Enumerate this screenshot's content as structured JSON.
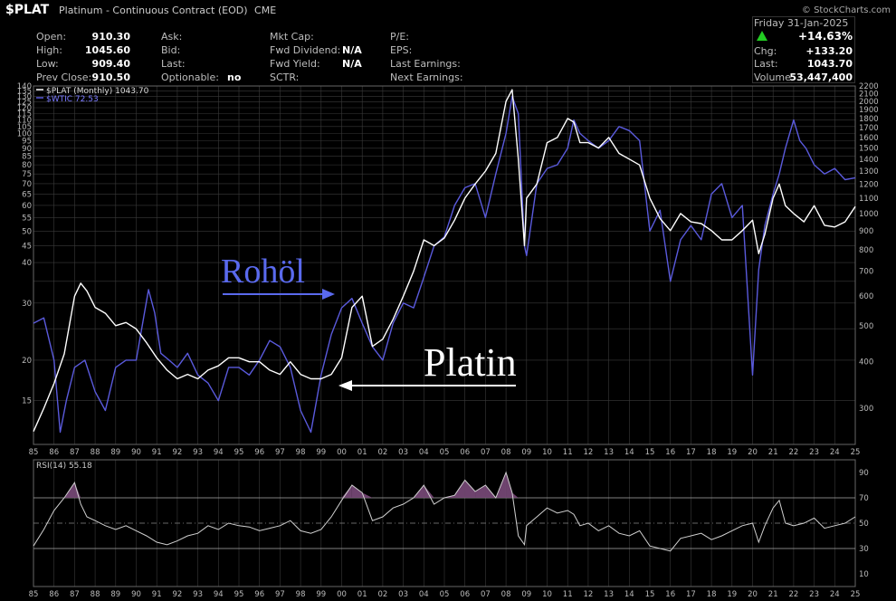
{
  "header": {
    "symbol": "$PLAT",
    "name": "Platinum - Continuous Contract (EOD)",
    "exchange": "CME",
    "watermark": "© StockCharts.com"
  },
  "quote": {
    "open_label": "Open:",
    "open": "910.30",
    "high_label": "High:",
    "high": "1045.60",
    "low_label": "Low:",
    "low": "909.40",
    "prev_close_label": "Prev Close:",
    "prev_close": "910.50",
    "ask_label": "Ask:",
    "bid_label": "Bid:",
    "last_label": "Last:",
    "optionable_label": "Optionable:",
    "optionable": "no",
    "mktcap_label": "Mkt Cap:",
    "fwd_div_label": "Fwd Dividend:",
    "fwd_div": "N/A",
    "fwd_yield_label": "Fwd Yield:",
    "fwd_yield": "N/A",
    "sctr_label": "SCTR:",
    "pe_label": "P/E:",
    "eps_label": "EPS:",
    "last_earn_label": "Last Earnings:",
    "next_earn_label": "Next Earnings:",
    "date": "Friday  31-Jan-2025",
    "change_pct": "+14.63%",
    "chg_label": "Chg:",
    "chg": "+133.20",
    "last2_label": "Last:",
    "last2": "1043.70",
    "volume_label": "Volume:",
    "volume": "53,447,400"
  },
  "annotations": {
    "oil": "Rohöl",
    "platinum": "Platin"
  },
  "colors": {
    "platinum": "#ffffff",
    "oil": "#5a5adc",
    "up": "#22cc22",
    "rsi_fill": "#7a4a7a"
  },
  "chart_data": {
    "type": "line",
    "legend": [
      "$PLAT (Monthly) 1043.70",
      "$WTIC 72.53"
    ],
    "x_ticks": [
      "85",
      "86",
      "87",
      "88",
      "89",
      "90",
      "91",
      "92",
      "93",
      "94",
      "95",
      "96",
      "97",
      "98",
      "99",
      "00",
      "01",
      "02",
      "03",
      "04",
      "05",
      "06",
      "07",
      "08",
      "09",
      "10",
      "11",
      "12",
      "13",
      "14",
      "15",
      "16",
      "17",
      "18",
      "19",
      "20",
      "21",
      "22",
      "23",
      "24",
      "25"
    ],
    "left_axis_ticks": [
      15,
      20,
      25,
      30,
      35,
      40,
      45,
      50,
      55,
      60,
      65,
      70,
      75,
      80,
      85,
      90,
      95,
      100,
      105,
      110,
      115,
      120,
      125,
      130,
      135,
      140
    ],
    "left_axis_labeled": [
      15,
      20,
      30,
      40,
      45,
      50,
      55,
      60,
      65,
      70,
      75,
      80,
      85,
      90,
      95,
      100,
      105,
      110,
      115,
      120,
      125,
      130,
      135,
      140
    ],
    "right_axis_ticks": [
      300,
      400,
      500,
      600,
      700,
      800,
      900,
      1000,
      1100,
      1200,
      1300,
      1400,
      1500,
      1600,
      1700,
      1800,
      1900,
      2000,
      2100,
      2200
    ],
    "ylim_left": [
      11,
      140
    ],
    "ylim_right": [
      240,
      2200
    ],
    "series": [
      {
        "name": "$PLAT (Monthly)",
        "axis": "right",
        "x": [
          1985,
          1985.5,
          1986,
          1986.5,
          1987,
          1987.3,
          1987.6,
          1988,
          1988.5,
          1989,
          1989.5,
          1990,
          1990.5,
          1991,
          1991.5,
          1992,
          1992.5,
          1993,
          1993.5,
          1994,
          1994.5,
          1995,
          1995.5,
          1996,
          1996.5,
          1997,
          1997.5,
          1998,
          1998.5,
          1999,
          1999.5,
          2000,
          2000.5,
          2001,
          2001.5,
          2002,
          2002.5,
          2003,
          2003.5,
          2004,
          2004.5,
          2005,
          2005.5,
          2006,
          2006.5,
          2007,
          2007.5,
          2008,
          2008.3,
          2008.6,
          2008.9,
          2009,
          2009.5,
          2010,
          2010.5,
          2011,
          2011.3,
          2011.6,
          2012,
          2012.5,
          2013,
          2013.5,
          2014,
          2014.5,
          2015,
          2015.5,
          2016,
          2016.5,
          2017,
          2017.5,
          2018,
          2018.5,
          2019,
          2019.5,
          2020,
          2020.3,
          2020.6,
          2021,
          2021.3,
          2021.6,
          2022,
          2022.5,
          2023,
          2023.5,
          2024,
          2024.5,
          2025
        ],
        "values": [
          260,
          300,
          350,
          420,
          600,
          650,
          620,
          560,
          540,
          500,
          510,
          490,
          450,
          410,
          380,
          360,
          370,
          360,
          380,
          390,
          410,
          410,
          400,
          400,
          380,
          370,
          400,
          370,
          360,
          360,
          370,
          410,
          560,
          600,
          440,
          460,
          520,
          600,
          700,
          850,
          820,
          860,
          960,
          1100,
          1200,
          1300,
          1450,
          2000,
          2150,
          1400,
          820,
          1100,
          1200,
          1550,
          1600,
          1800,
          1760,
          1550,
          1550,
          1500,
          1600,
          1450,
          1400,
          1350,
          1100,
          970,
          900,
          1000,
          950,
          940,
          900,
          850,
          850,
          900,
          960,
          780,
          880,
          1100,
          1200,
          1050,
          1000,
          950,
          1050,
          930,
          920,
          950,
          1044
        ]
      },
      {
        "name": "$WTIC",
        "axis": "left",
        "x": [
          1985,
          1985.5,
          1986,
          1986.3,
          1986.6,
          1987,
          1987.5,
          1988,
          1988.5,
          1989,
          1989.5,
          1990,
          1990.6,
          1990.9,
          1991.2,
          1991.6,
          1992,
          1992.5,
          1993,
          1993.5,
          1994,
          1994.5,
          1995,
          1995.5,
          1996,
          1996.5,
          1997,
          1997.5,
          1998,
          1998.5,
          1999,
          1999.5,
          2000,
          2000.5,
          2001,
          2001.5,
          2002,
          2002.5,
          2003,
          2003.5,
          2004,
          2004.5,
          2005,
          2005.5,
          2006,
          2006.5,
          2007,
          2007.5,
          2008,
          2008.3,
          2008.6,
          2008.9,
          2009,
          2009.5,
          2010,
          2010.5,
          2011,
          2011.3,
          2011.6,
          2012,
          2012.5,
          2013,
          2013.5,
          2014,
          2014.5,
          2015,
          2015.5,
          2016,
          2016.5,
          2017,
          2017.5,
          2018,
          2018.5,
          2019,
          2019.5,
          2020,
          2020.3,
          2020.6,
          2021,
          2021.3,
          2021.6,
          2022,
          2022.3,
          2022.6,
          2023,
          2023.5,
          2024,
          2024.5,
          2025
        ],
        "values": [
          26,
          27,
          20,
          12,
          15,
          19,
          20,
          16,
          14,
          19,
          20,
          20,
          33,
          28,
          21,
          20,
          19,
          21,
          18,
          17,
          15,
          19,
          19,
          18,
          20,
          23,
          22,
          19,
          14,
          12,
          18,
          24,
          29,
          31,
          26,
          22,
          20,
          26,
          30,
          29,
          36,
          45,
          48,
          60,
          68,
          70,
          55,
          75,
          100,
          130,
          115,
          45,
          42,
          70,
          78,
          80,
          90,
          110,
          100,
          95,
          90,
          95,
          105,
          102,
          95,
          50,
          58,
          35,
          47,
          52,
          47,
          65,
          70,
          55,
          60,
          18,
          38,
          52,
          65,
          75,
          90,
          110,
          95,
          90,
          80,
          75,
          78,
          72,
          73
        ]
      }
    ]
  },
  "rsi": {
    "label": "RSI(14) 55.18",
    "ticks": [
      10,
      30,
      50,
      70,
      90
    ],
    "overbought": 70,
    "oversold": 30,
    "midline": 50,
    "x": [
      1985,
      1985.5,
      1986,
      1986.5,
      1987,
      1987.3,
      1987.6,
      1988,
      1988.5,
      1989,
      1989.5,
      1990,
      1990.5,
      1991,
      1991.5,
      1992,
      1992.5,
      1993,
      1993.5,
      1994,
      1994.5,
      1995,
      1995.5,
      1996,
      1996.5,
      1997,
      1997.5,
      1998,
      1998.5,
      1999,
      1999.5,
      2000,
      2000.5,
      2001,
      2001.5,
      2002,
      2002.5,
      2003,
      2003.5,
      2004,
      2004.5,
      2005,
      2005.5,
      2006,
      2006.5,
      2007,
      2007.5,
      2008,
      2008.3,
      2008.6,
      2008.9,
      2009,
      2009.5,
      2010,
      2010.5,
      2011,
      2011.3,
      2011.6,
      2012,
      2012.5,
      2013,
      2013.5,
      2014,
      2014.5,
      2015,
      2015.5,
      2016,
      2016.5,
      2017,
      2017.5,
      2018,
      2018.5,
      2019,
      2019.5,
      2020,
      2020.3,
      2020.6,
      2021,
      2021.3,
      2021.6,
      2022,
      2022.5,
      2023,
      2023.5,
      2024,
      2024.5,
      2025
    ],
    "values": [
      32,
      45,
      60,
      70,
      82,
      65,
      55,
      52,
      48,
      45,
      48,
      44,
      40,
      35,
      33,
      36,
      40,
      42,
      48,
      45,
      50,
      48,
      47,
      44,
      46,
      48,
      52,
      44,
      42,
      45,
      55,
      68,
      80,
      74,
      52,
      55,
      62,
      65,
      70,
      80,
      65,
      70,
      72,
      84,
      75,
      80,
      70,
      90,
      74,
      40,
      33,
      48,
      55,
      62,
      58,
      60,
      57,
      48,
      50,
      44,
      48,
      42,
      40,
      44,
      32,
      30,
      28,
      38,
      40,
      42,
      37,
      40,
      44,
      48,
      50,
      35,
      48,
      62,
      68,
      50,
      48,
      50,
      54,
      46,
      48,
      50,
      55
    ]
  }
}
